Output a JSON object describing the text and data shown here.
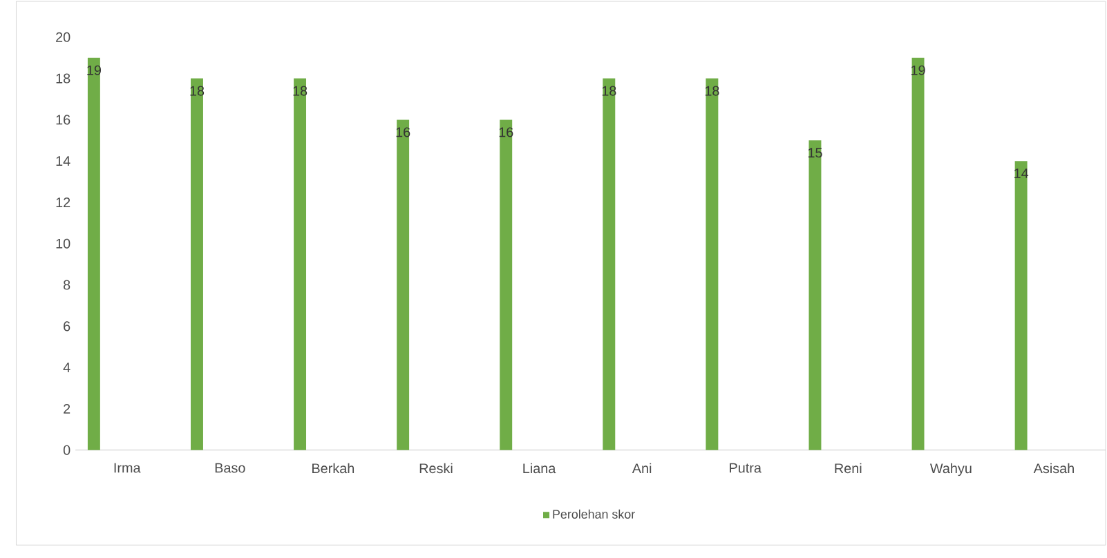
{
  "chart_data": {
    "type": "bar",
    "categories": [
      "Irma",
      "Baso",
      "Berkah",
      "Reski",
      "Liana",
      "Ani",
      "Putra",
      "Reni",
      "Wahyu",
      "Asisah"
    ],
    "series": [
      {
        "name": "Perolehan skor",
        "color": "#70ad47",
        "values": [
          19,
          18,
          18,
          16,
          16,
          18,
          18,
          15,
          19,
          14
        ]
      }
    ],
    "ylim": [
      0,
      20
    ],
    "yticks": [
      0,
      2,
      4,
      6,
      8,
      10,
      12,
      14,
      16,
      18,
      20
    ],
    "data_labels": true,
    "legend": "bottom",
    "grid": false
  }
}
